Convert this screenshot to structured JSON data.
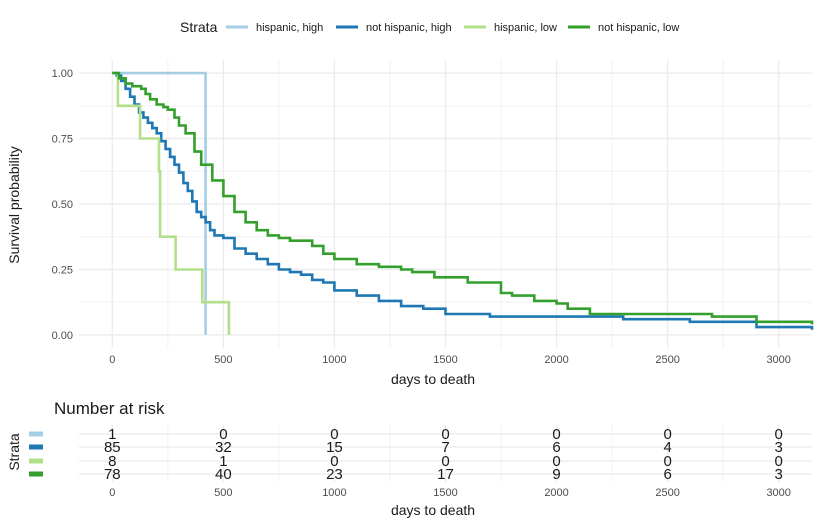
{
  "chart_data": [
    {
      "type": "line",
      "step": true,
      "xlabel": "days to death",
      "ylabel": "Survival probability",
      "xlim": [
        -150,
        3150
      ],
      "ylim": [
        -0.05,
        1.05
      ],
      "x_ticks": [
        0,
        500,
        1000,
        1500,
        2000,
        2500,
        3000
      ],
      "x_tick_labels": [
        "0",
        "500",
        "1000",
        "1500",
        "2000",
        "2500",
        "3000"
      ],
      "y_ticks": [
        0,
        0.25,
        0.5,
        0.75,
        1
      ],
      "y_tick_labels": [
        "0.00",
        "0.25",
        "0.50",
        "0.75",
        "1.00"
      ],
      "grid": true,
      "legend": {
        "title": "Strata",
        "position": "top",
        "entries": [
          "hispanic, high",
          "not hispanic, high",
          "hispanic, low",
          "not hispanic, low"
        ]
      },
      "series": [
        {
          "name": "hispanic, high",
          "color": "#A6CEE3",
          "x": [
            0,
            420,
            420
          ],
          "y": [
            1.0,
            1.0,
            0.0
          ]
        },
        {
          "name": "not hispanic, high",
          "color": "#1F78B4",
          "x": [
            0,
            20,
            40,
            60,
            80,
            100,
            120,
            140,
            160,
            180,
            200,
            220,
            240,
            260,
            280,
            300,
            320,
            340,
            360,
            380,
            400,
            420,
            440,
            460,
            480,
            500,
            550,
            600,
            650,
            700,
            750,
            800,
            850,
            900,
            950,
            1000,
            1050,
            1100,
            1200,
            1300,
            1400,
            1500,
            1700,
            2000,
            2300,
            2600,
            2900,
            3150
          ],
          "y": [
            1.0,
            0.99,
            0.97,
            0.94,
            0.91,
            0.88,
            0.85,
            0.83,
            0.81,
            0.79,
            0.77,
            0.74,
            0.71,
            0.68,
            0.65,
            0.62,
            0.58,
            0.55,
            0.51,
            0.47,
            0.45,
            0.43,
            0.4,
            0.38,
            0.38,
            0.37,
            0.33,
            0.31,
            0.29,
            0.27,
            0.25,
            0.24,
            0.23,
            0.21,
            0.2,
            0.17,
            0.17,
            0.15,
            0.13,
            0.11,
            0.1,
            0.08,
            0.07,
            0.07,
            0.06,
            0.05,
            0.03,
            0.02
          ]
        },
        {
          "name": "hispanic, low",
          "color": "#B2DF8A",
          "x": [
            0,
            25,
            125,
            210,
            215,
            285,
            405,
            520,
            525
          ],
          "y": [
            1.0,
            0.875,
            0.75,
            0.625,
            0.375,
            0.25,
            0.125,
            0.125,
            0.0
          ]
        },
        {
          "name": "not hispanic, low",
          "color": "#33A02C",
          "x": [
            0,
            30,
            60,
            90,
            130,
            150,
            170,
            200,
            230,
            250,
            280,
            300,
            330,
            370,
            400,
            450,
            500,
            550,
            600,
            650,
            700,
            750,
            800,
            900,
            950,
            1000,
            1100,
            1200,
            1300,
            1350,
            1450,
            1600,
            1750,
            1800,
            1900,
            2000,
            2050,
            2150,
            2500,
            2700,
            2900,
            3150
          ],
          "y": [
            1.0,
            0.98,
            0.96,
            0.95,
            0.94,
            0.92,
            0.9,
            0.88,
            0.87,
            0.86,
            0.83,
            0.8,
            0.77,
            0.7,
            0.65,
            0.59,
            0.53,
            0.47,
            0.43,
            0.4,
            0.38,
            0.37,
            0.36,
            0.34,
            0.31,
            0.29,
            0.27,
            0.26,
            0.25,
            0.24,
            0.22,
            0.2,
            0.16,
            0.15,
            0.13,
            0.12,
            0.1,
            0.08,
            0.08,
            0.07,
            0.05,
            0.04
          ]
        }
      ]
    },
    {
      "type": "table",
      "title": "Number at risk",
      "xlabel": "days to death",
      "ylabel": "Strata",
      "x": [
        0,
        500,
        1000,
        1500,
        2000,
        2500,
        3000
      ],
      "x_tick_labels": [
        "0",
        "500",
        "1000",
        "1500",
        "2000",
        "2500",
        "3000"
      ],
      "rows": [
        {
          "color": "#A6CEE3",
          "values": [
            "1",
            "0",
            "0",
            "0",
            "0",
            "0",
            "0"
          ]
        },
        {
          "color": "#1F78B4",
          "values": [
            "85",
            "32",
            "15",
            "7",
            "6",
            "4",
            "3"
          ]
        },
        {
          "color": "#B2DF8A",
          "values": [
            "8",
            "1",
            "0",
            "0",
            "0",
            "0",
            "0"
          ]
        },
        {
          "color": "#33A02C",
          "values": [
            "78",
            "40",
            "23",
            "17",
            "9",
            "6",
            "3"
          ]
        }
      ]
    }
  ]
}
